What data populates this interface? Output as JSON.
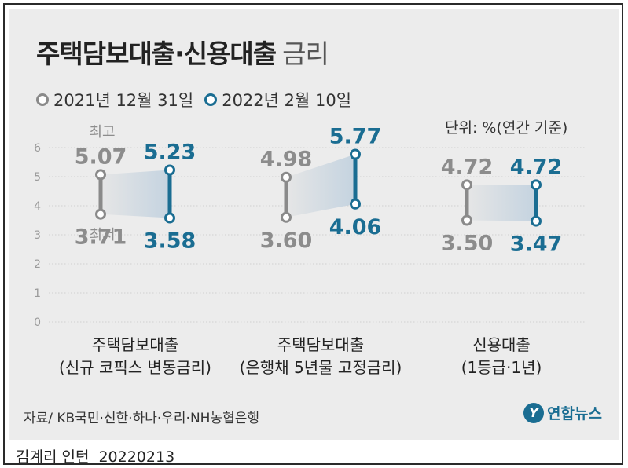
{
  "title_main": "주택담보대출·신용대출",
  "title_sub": "금리",
  "legend": [
    {
      "label": "2021년 12월 31일",
      "color": "#8a8a8a"
    },
    {
      "label": "2022년 2월 10일",
      "color": "#1a6d92"
    }
  ],
  "unit": "단위: %(연간 기준)",
  "source": "자료/ KB국민·신한·하나·우리·NH농협은행",
  "logo_text": "연합뉴스",
  "credit_name": "김계리 인턴",
  "credit_date": "20220213",
  "annotations": {
    "high": "최고",
    "low": "최저"
  },
  "chart_data": {
    "type": "range",
    "ylim": [
      0,
      6
    ],
    "yticks": [
      "0",
      "1",
      "2",
      "3",
      "4",
      "5",
      "6"
    ],
    "series_colors": {
      "2021년 12월 31일": "#8a8a8a",
      "2022년 2월 10일": "#1a6d92"
    },
    "categories": [
      {
        "label_line1": "주택담보대출",
        "label_line2": "(신규 코픽스 변동금리)",
        "series": [
          {
            "name": "2021년 12월 31일",
            "high": 5.07,
            "low": 3.71,
            "high_label": "5.07",
            "low_label": "3.71"
          },
          {
            "name": "2022년 2월 10일",
            "high": 5.23,
            "low": 3.58,
            "high_label": "5.23",
            "low_label": "3.58"
          }
        ]
      },
      {
        "label_line1": "주택담보대출",
        "label_line2": "(은행채 5년물 고정금리)",
        "series": [
          {
            "name": "2021년 12월 31일",
            "high": 4.98,
            "low": 3.6,
            "high_label": "4.98",
            "low_label": "3.60"
          },
          {
            "name": "2022년 2월 10일",
            "high": 5.77,
            "low": 4.06,
            "high_label": "5.77",
            "low_label": "4.06"
          }
        ]
      },
      {
        "label_line1": "신용대출",
        "label_line2": "(1등급·1년)",
        "series": [
          {
            "name": "2021년 12월 31일",
            "high": 4.72,
            "low": 3.5,
            "high_label": "4.72",
            "low_label": "3.50"
          },
          {
            "name": "2022년 2월 10일",
            "high": 4.72,
            "low": 3.47,
            "high_label": "4.72",
            "low_label": "3.47"
          }
        ]
      }
    ]
  }
}
